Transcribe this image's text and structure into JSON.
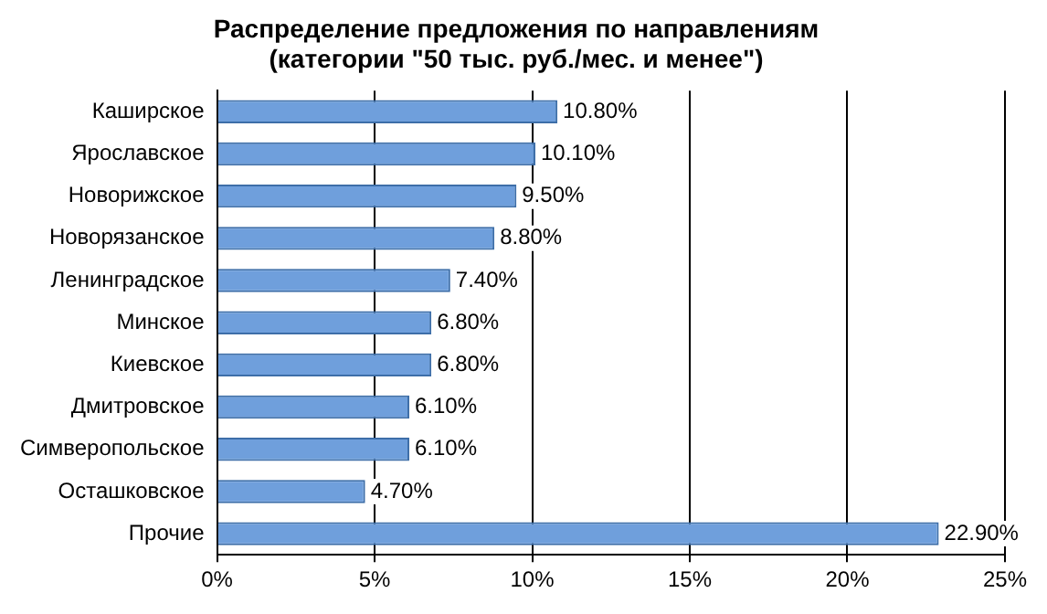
{
  "chart_data": {
    "type": "bar",
    "orientation": "horizontal",
    "title": "Распределение предложения по направлениям\n(категории \"50 тыс. руб./мес. и менее\")",
    "categories": [
      "Каширское",
      "Ярославское",
      "Новорижское",
      "Новорязанское",
      "Ленинградское",
      "Минское",
      "Киевское",
      "Дмитровское",
      "Симверопольское",
      "Осташковское",
      "Прочие"
    ],
    "values": [
      10.8,
      10.1,
      9.5,
      8.8,
      7.4,
      6.8,
      6.8,
      6.1,
      6.1,
      4.7,
      22.9
    ],
    "value_labels": [
      "10.80%",
      "10.10%",
      "9.50%",
      "8.80%",
      "7.40%",
      "6.80%",
      "6.80%",
      "6.10%",
      "6.10%",
      "4.70%",
      "22.90%"
    ],
    "color": "#6f9fdc",
    "xlim": [
      0,
      25
    ],
    "xticks": [
      {
        "value": 0,
        "label": "0%"
      },
      {
        "value": 5,
        "label": "5%"
      },
      {
        "value": 10,
        "label": "10%"
      },
      {
        "value": 15,
        "label": "15%"
      },
      {
        "value": 20,
        "label": "20%"
      },
      {
        "value": 25,
        "label": "25%"
      }
    ],
    "grid": "x",
    "legend": false
  }
}
